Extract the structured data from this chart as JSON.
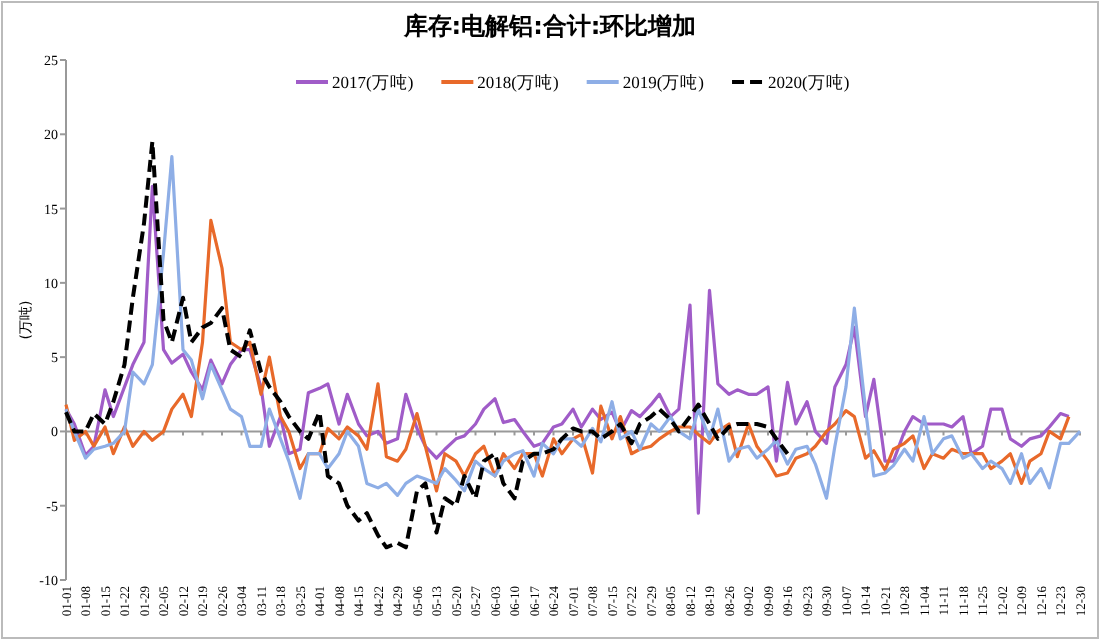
{
  "chart_data": {
    "type": "line",
    "title": "库存:电解铝:合计:环比增加",
    "ylabel": "(万吨)",
    "legend": "top",
    "marker": "none",
    "x": [
      "--01-01",
      "--01-04",
      "--01-08",
      "--01-11",
      "--01-15",
      "--01-18",
      "--01-22",
      "--01-25",
      "--01-29",
      "--02-01",
      "--02-05",
      "--02-08",
      "--02-12",
      "--02-15",
      "--02-19",
      "--02-22",
      "--02-26",
      "--02-29",
      "--03-04",
      "--03-07",
      "--03-11",
      "--03-14",
      "--03-18",
      "--03-21",
      "--03-25",
      "--03-28",
      "--04-01",
      "--04-04",
      "--04-08",
      "--04-11",
      "--04-15",
      "--04-18",
      "--04-22",
      "--04-25",
      "--04-29",
      "--05-02",
      "--05-06",
      "--05-09",
      "--05-13",
      "--05-16",
      "--05-20",
      "--05-23",
      "--05-27",
      "--05-30",
      "--06-03",
      "--06-06",
      "--06-10",
      "--06-13",
      "--06-17",
      "--06-20",
      "--06-24",
      "--06-27",
      "--07-01",
      "--07-04",
      "--07-08",
      "--07-11",
      "--07-15",
      "--07-18",
      "--07-22",
      "--07-25",
      "--07-29",
      "--08-01",
      "--08-05",
      "--08-08",
      "--08-12",
      "--08-15",
      "--08-19",
      "--08-22",
      "--08-26",
      "--08-29",
      "--09-02",
      "--09-05",
      "--09-09",
      "--09-12",
      "--09-16",
      "--09-19",
      "--09-23",
      "--09-26",
      "--09-30",
      "--10-03",
      "--10-07",
      "--10-10",
      "--10-14",
      "--10-17",
      "--10-21",
      "--10-24",
      "--10-28",
      "--10-31",
      "--11-04",
      "--11-07",
      "--11-11",
      "--11-14",
      "--11-18",
      "--11-21",
      "--11-25",
      "--11-28",
      "--12-02",
      "--12-05",
      "--12-09",
      "--12-12",
      "--12-16",
      "--12-19",
      "--12-23",
      "--12-26",
      "--12-30"
    ],
    "xlim": [
      "--01-01",
      "--12-30"
    ],
    "xticks": [
      {
        "value": "--01-01",
        "label": "01-01"
      },
      {
        "value": "--01-08",
        "label": "01-08"
      },
      {
        "value": "--01-15",
        "label": "01-15"
      },
      {
        "value": "--01-22",
        "label": "01-22"
      },
      {
        "value": "--01-29",
        "label": "01-29"
      },
      {
        "value": "--02-05",
        "label": "02-05"
      },
      {
        "value": "--02-12",
        "label": "02-12"
      },
      {
        "value": "--02-19",
        "label": "02-19"
      },
      {
        "value": "--02-26",
        "label": "02-26"
      },
      {
        "value": "--03-04",
        "label": "03-04"
      },
      {
        "value": "--03-11",
        "label": "03-11"
      },
      {
        "value": "--03-18",
        "label": "03-18"
      },
      {
        "value": "--03-25",
        "label": "03-25"
      },
      {
        "value": "--04-01",
        "label": "04-01"
      },
      {
        "value": "--04-08",
        "label": "04-08"
      },
      {
        "value": "--04-15",
        "label": "04-15"
      },
      {
        "value": "--04-22",
        "label": "04-22"
      },
      {
        "value": "--04-29",
        "label": "04-29"
      },
      {
        "value": "--05-06",
        "label": "05-06"
      },
      {
        "value": "--05-13",
        "label": "05-13"
      },
      {
        "value": "--05-20",
        "label": "05-20"
      },
      {
        "value": "--05-27",
        "label": "05-27"
      },
      {
        "value": "--06-03",
        "label": "06-03"
      },
      {
        "value": "--06-10",
        "label": "06-10"
      },
      {
        "value": "--06-17",
        "label": "06-17"
      },
      {
        "value": "--06-24",
        "label": "06-24"
      },
      {
        "value": "--07-01",
        "label": "07-01"
      },
      {
        "value": "--07-08",
        "label": "07-08"
      },
      {
        "value": "--07-15",
        "label": "07-15"
      },
      {
        "value": "--07-22",
        "label": "07-22"
      },
      {
        "value": "--07-29",
        "label": "07-29"
      },
      {
        "value": "--08-05",
        "label": "08-05"
      },
      {
        "value": "--08-12",
        "label": "08-12"
      },
      {
        "value": "--08-19",
        "label": "08-19"
      },
      {
        "value": "--08-26",
        "label": "08-26"
      },
      {
        "value": "--09-02",
        "label": "09-02"
      },
      {
        "value": "--09-09",
        "label": "09-09"
      },
      {
        "value": "--09-16",
        "label": "09-16"
      },
      {
        "value": "--09-23",
        "label": "09-23"
      },
      {
        "value": "--09-30",
        "label": "09-30"
      },
      {
        "value": "--10-07",
        "label": "10-07"
      },
      {
        "value": "--10-14",
        "label": "10-14"
      },
      {
        "value": "--10-21",
        "label": "10-21"
      },
      {
        "value": "--10-28",
        "label": "10-28"
      },
      {
        "value": "--11-04",
        "label": "11-04"
      },
      {
        "value": "--11-11",
        "label": "11-11"
      },
      {
        "value": "--11-18",
        "label": "11-18"
      },
      {
        "value": "--11-25",
        "label": "11-25"
      },
      {
        "value": "--12-02",
        "label": "12-02"
      },
      {
        "value": "--12-09",
        "label": "12-09"
      },
      {
        "value": "--12-16",
        "label": "12-16"
      },
      {
        "value": "--12-23",
        "label": "12-23"
      },
      {
        "value": "--12-30",
        "label": "12-30"
      }
    ],
    "ylim": [
      -10,
      25
    ],
    "yticks": [
      -10,
      -5,
      0,
      5,
      10,
      15,
      20,
      25
    ],
    "series": [
      {
        "name": "2017(万吨)",
        "color": "#a05cc8",
        "line_style": "solid",
        "values": [
          1.5,
          0.5,
          -1.6,
          -1,
          2.8,
          1,
          3,
          4.5,
          6,
          16.5,
          5.5,
          4.6,
          5.2,
          4,
          2.8,
          4.8,
          3.2,
          4.5,
          5.5,
          5.5,
          3,
          -1,
          1,
          -1.5,
          -1.2,
          2.6,
          2.9,
          3.2,
          0.5,
          2.5,
          0.5,
          -0.3,
          0,
          -0.8,
          -0.5,
          2.5,
          0.2,
          -1,
          -1.8,
          -1.2,
          -0.5,
          -0.3,
          0.5,
          1.5,
          2.2,
          0.6,
          0.8,
          0,
          -1,
          -0.8,
          0.3,
          0.5,
          1.5,
          0.3,
          1.5,
          0.8,
          1.3,
          0,
          1.4,
          1,
          1.8,
          2.5,
          1,
          1.5,
          8.5,
          -5.5,
          9.5,
          3.2,
          2.5,
          2.8,
          2.5,
          2.5,
          3,
          -2,
          3.3,
          0.5,
          2,
          0,
          -0.8,
          3,
          4.5,
          7,
          1,
          3.5,
          -2,
          -2,
          0,
          1,
          0.5,
          0.5,
          0.5,
          0.3,
          1,
          -1.5,
          -1,
          1.5,
          1.5,
          -0.5,
          -1,
          -0.5,
          -0.3,
          0.3,
          1.2,
          1,
          null
        ]
      },
      {
        "name": "2018(万吨)",
        "color": "#e8692a",
        "line_style": "solid",
        "values": [
          1.8,
          -0.6,
          0,
          -1,
          0.3,
          -1.5,
          0.3,
          -1,
          0,
          -0.6,
          0,
          1.5,
          2.5,
          1,
          6,
          14.2,
          11,
          6,
          5.5,
          6,
          2.5,
          5,
          1,
          0,
          -2.5,
          -1.5,
          -1.5,
          0.2,
          -0.5,
          0.3,
          -0.3,
          -1.2,
          3.2,
          -1.7,
          -2,
          -1.2,
          1.2,
          -1,
          -4,
          -1.5,
          -2,
          -3,
          -1.5,
          -1,
          -3,
          -1.5,
          -2.5,
          -1.5,
          -1.5,
          -3,
          -0.5,
          -1.5,
          -0.5,
          -0.2,
          -2.8,
          1.7,
          -0.5,
          1,
          -1.5,
          -1.2,
          -1,
          -0.5,
          0,
          0.3,
          0.3,
          -0.2,
          -0.8,
          0,
          0.5,
          -1.7,
          0.5,
          -1,
          -2,
          -3,
          -2.8,
          -1.8,
          -1.5,
          -1,
          0,
          0.5,
          1.4,
          1,
          -1.8,
          -1.3,
          -2.6,
          -1.2,
          -0.8,
          -0.3,
          -2.5,
          -1.5,
          -1.8,
          -1.2,
          -1.5,
          -1.5,
          -1.5,
          -2.5,
          -2,
          -1.5,
          -3.5,
          -2,
          -1.5,
          0,
          -0.5,
          1,
          null
        ]
      },
      {
        "name": "2019(万吨)",
        "color": "#8eaee6",
        "line_style": "solid",
        "values": [
          1.5,
          0,
          -1.8,
          -1.2,
          -1,
          -0.8,
          0,
          4,
          3.2,
          4.5,
          12,
          18.5,
          5.5,
          4.8,
          2.2,
          4.5,
          2.8,
          1.5,
          1,
          -1,
          -1,
          1.5,
          -0.5,
          -2,
          -4.5,
          -1.5,
          -1.5,
          -2.5,
          -1.5,
          0,
          -1,
          -3.5,
          -3.8,
          -3.5,
          -4.3,
          -3.5,
          -3,
          -3.2,
          -3.5,
          -2.5,
          -3.3,
          -4,
          -2,
          -2.5,
          -3,
          -2,
          -1.5,
          -1.3,
          -3,
          -0.8,
          -1.5,
          -0.5,
          -0.5,
          -1,
          0.2,
          -0.7,
          2,
          -0.5,
          0,
          -1.2,
          0.5,
          0,
          1,
          0,
          -0.5,
          1.5,
          -0.5,
          1.5,
          -2,
          -1.2,
          -1,
          -1.8,
          -1.2,
          -0.6,
          -2.2,
          -1.2,
          -1,
          -2.2,
          -4.5,
          -1,
          3,
          8.3,
          1.5,
          -3,
          -2.8,
          -2.3,
          -1.2,
          -2,
          1,
          -1.5,
          -0.5,
          -0.3,
          -1.8,
          -1.5,
          -2.5,
          -2,
          -2.5,
          -3.5,
          -1.5,
          -3.5,
          -2.5,
          -3.8,
          -0.8,
          -0.8,
          0
        ]
      },
      {
        "name": "2020(万吨)",
        "color": "#000000",
        "line_style": "dashed",
        "values": [
          1.3,
          0,
          0,
          1.2,
          0.5,
          2,
          4.5,
          9,
          14,
          19.5,
          7.5,
          6,
          9,
          6,
          7,
          7.3,
          8.3,
          5.5,
          5,
          6.8,
          4,
          3,
          2,
          1,
          0,
          -0.5,
          1.3,
          -3,
          -3.5,
          -5,
          -6,
          -5.5,
          -7,
          -7.8,
          -7.5,
          -7.8,
          -4,
          -3.5,
          -6.8,
          -4.5,
          -5,
          -3,
          -4.5,
          -2,
          -1.5,
          -3.5,
          -4.5,
          -2,
          -1.5,
          -1.5,
          -1.2,
          -0.5,
          0.2,
          0,
          0,
          -0.5,
          0,
          0.5,
          -0.8,
          0.5,
          1,
          1.5,
          0.8,
          0,
          1,
          1.8,
          0.5,
          -0.5,
          0.3,
          0.5,
          0.5,
          0.5,
          0.3,
          -0.5,
          -1.5,
          null,
          null,
          null,
          null,
          null,
          null,
          null,
          null,
          null,
          null,
          null,
          null,
          null,
          null,
          null,
          null,
          null,
          null,
          null,
          null,
          null,
          null,
          null,
          null,
          null,
          null,
          null,
          null,
          null,
          null
        ]
      }
    ]
  }
}
